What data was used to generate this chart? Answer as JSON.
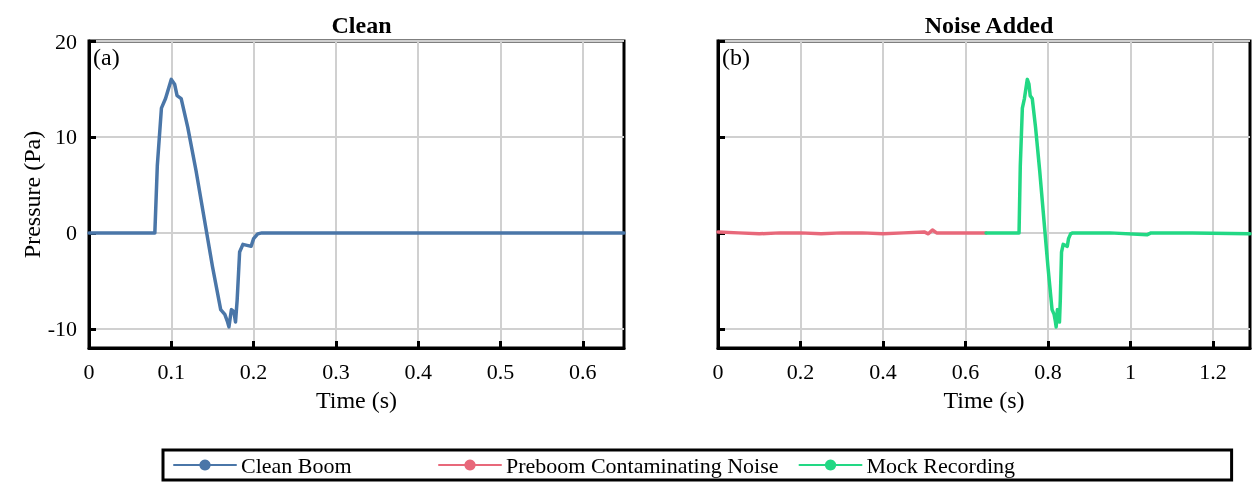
{
  "chart_data": [
    {
      "type": "line",
      "title": "Clean",
      "xlabel": "Time (s)",
      "ylabel": "Pressure (Pa)",
      "annotations": [
        "(a)"
      ],
      "xlim": [
        0,
        0.65
      ],
      "xticks": [
        0,
        0.1,
        0.2,
        0.3,
        0.4,
        0.5,
        0.6
      ],
      "ylim": [
        -12,
        20
      ],
      "yticks": [
        -10,
        0,
        10,
        20
      ],
      "grid": true,
      "legend": "bottom",
      "line_style": "solid",
      "series": [
        {
          "name": "Clean Boom",
          "color": "#4a76a8",
          "x": [
            0,
            0.08,
            0.083,
            0.088,
            0.093,
            0.1,
            0.104,
            0.107,
            0.112,
            0.12,
            0.13,
            0.14,
            0.15,
            0.16,
            0.165,
            0.168,
            0.17,
            0.173,
            0.176,
            0.178,
            0.18,
            0.183,
            0.187,
            0.192,
            0.197,
            0.2,
            0.205,
            0.21,
            0.65
          ],
          "values": [
            0,
            0,
            7,
            13,
            14,
            16,
            15.5,
            14.3,
            14,
            11,
            6.5,
            1.5,
            -3.5,
            -8,
            -8.5,
            -9.2,
            -9.8,
            -8,
            -8.2,
            -9.3,
            -7,
            -2,
            -1.2,
            -1.3,
            -1.4,
            -0.6,
            -0.1,
            0,
            0
          ]
        }
      ]
    },
    {
      "type": "line",
      "title": "Noise Added",
      "xlabel": "Time (s)",
      "annotations": [
        "(b)"
      ],
      "xlim": [
        0,
        1.29
      ],
      "xticks": [
        0,
        0.2,
        0.4,
        0.6,
        0.8,
        1,
        1.2
      ],
      "ylim": [
        -12,
        20
      ],
      "yticks": [
        -10,
        0,
        10,
        20
      ],
      "tick_labels": "x",
      "grid": true,
      "legend": "bottom",
      "line_style": "solid",
      "series": [
        {
          "name": "Preboom Contaminating Noise",
          "color": "#e8687a",
          "x": [
            0,
            0.05,
            0.1,
            0.15,
            0.2,
            0.25,
            0.3,
            0.35,
            0.4,
            0.45,
            0.5,
            0.51,
            0.52,
            0.53,
            0.55,
            0.6,
            0.65
          ],
          "values": [
            0.1,
            0,
            -0.1,
            0,
            0,
            -0.1,
            0,
            0,
            -0.1,
            0,
            0.1,
            -0.1,
            0.3,
            0,
            0,
            0,
            0
          ]
        },
        {
          "name": "Mock Recording",
          "color": "#22d884",
          "x": [
            0.65,
            0.73,
            0.733,
            0.738,
            0.743,
            0.75,
            0.754,
            0.757,
            0.762,
            0.77,
            0.78,
            0.79,
            0.8,
            0.81,
            0.815,
            0.818,
            0.82,
            0.823,
            0.826,
            0.828,
            0.83,
            0.833,
            0.837,
            0.842,
            0.847,
            0.85,
            0.855,
            0.86,
            0.95,
            1.04,
            1.05,
            1.15,
            1.29
          ],
          "values": [
            0,
            0,
            7,
            13,
            14,
            16,
            15.5,
            14.3,
            14,
            11,
            6.5,
            1.5,
            -3.5,
            -8,
            -8.5,
            -9.2,
            -9.8,
            -8,
            -8.2,
            -9.3,
            -7,
            -2,
            -1.2,
            -1.3,
            -1.4,
            -0.6,
            -0.1,
            0,
            0,
            -0.2,
            0,
            0,
            -0.1
          ]
        }
      ]
    }
  ]
}
